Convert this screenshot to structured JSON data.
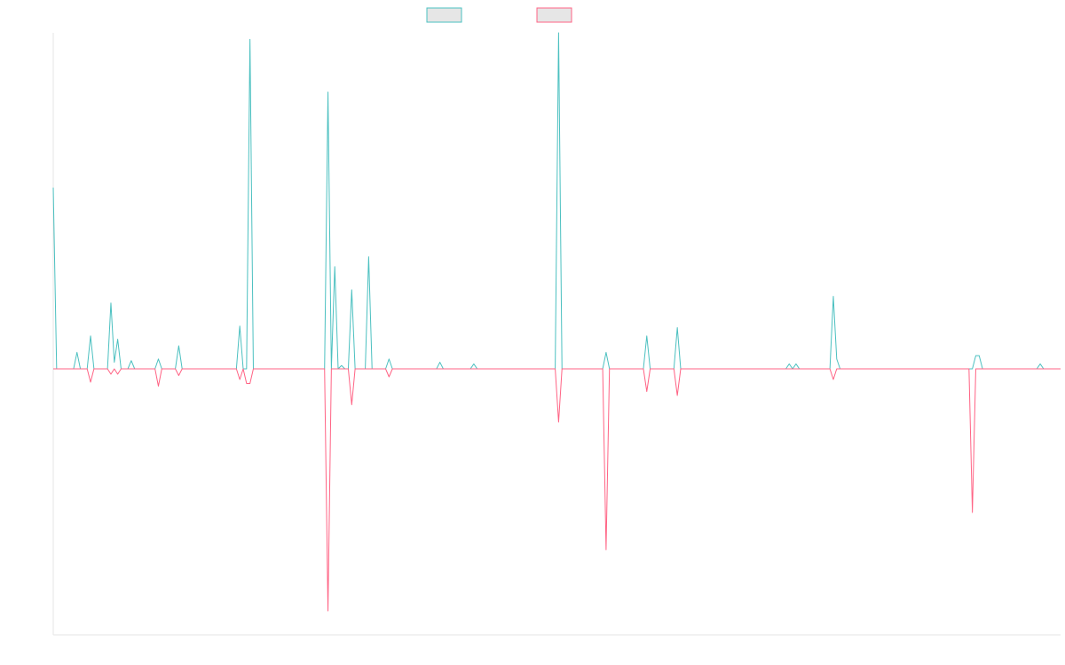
{
  "chart_data": {
    "type": "line",
    "title": "",
    "xlabel": "",
    "ylabel": "",
    "grid": false,
    "legend": "top-center",
    "ylim": [
      -1,
      1.02
    ],
    "x_count": 297,
    "series": [
      {
        "color": "#4bc0c0",
        "points": [
          [
            0,
            0.55
          ],
          [
            1,
            0
          ],
          [
            6,
            0
          ],
          [
            7,
            0.05
          ],
          [
            8,
            0
          ],
          [
            11,
            0.1
          ],
          [
            12,
            0
          ],
          [
            17,
            0.2
          ],
          [
            18,
            0.02
          ],
          [
            19,
            0.09
          ],
          [
            20,
            0
          ],
          [
            22,
            0
          ],
          [
            23,
            0.025
          ],
          [
            24,
            0
          ],
          [
            30,
            0
          ],
          [
            31,
            0.03
          ],
          [
            32,
            0
          ],
          [
            36,
            0
          ],
          [
            37,
            0.07
          ],
          [
            38,
            0
          ],
          [
            54,
            0
          ],
          [
            55,
            0.13
          ],
          [
            56,
            0
          ],
          [
            57,
            0
          ],
          [
            58,
            1
          ],
          [
            59,
            0
          ],
          [
            80,
            0
          ],
          [
            81,
            0.84
          ],
          [
            82,
            0
          ],
          [
            83,
            0.31
          ],
          [
            84,
            0
          ],
          [
            85,
            0.01
          ],
          [
            86,
            0
          ],
          [
            88,
            0.24
          ],
          [
            89,
            0
          ],
          [
            92,
            0
          ],
          [
            93,
            0.34
          ],
          [
            94,
            0
          ],
          [
            98,
            0
          ],
          [
            99,
            0.03
          ],
          [
            100,
            0
          ],
          [
            297,
            0
          ],
          [
            113,
            0
          ],
          [
            114,
            0.02
          ],
          [
            115,
            0
          ],
          [
            123,
            0
          ],
          [
            124,
            0.015
          ],
          [
            125,
            0
          ],
          [
            148,
            0
          ],
          [
            149,
            1.02
          ],
          [
            150,
            0
          ],
          [
            162,
            0
          ],
          [
            163,
            0.05
          ],
          [
            164,
            0
          ],
          [
            174,
            0
          ],
          [
            175,
            0.1
          ],
          [
            176,
            0
          ],
          [
            183,
            0
          ],
          [
            184,
            0.125
          ],
          [
            185,
            0
          ],
          [
            216,
            0
          ],
          [
            217,
            0.015
          ],
          [
            218,
            0
          ],
          [
            219,
            0.015
          ],
          [
            220,
            0
          ],
          [
            229,
            0
          ],
          [
            230,
            0.22
          ],
          [
            231,
            0.03
          ],
          [
            232,
            0
          ],
          [
            271,
            0
          ],
          [
            272,
            0.04
          ],
          [
            273,
            0.04
          ],
          [
            274,
            0
          ],
          [
            290,
            0
          ],
          [
            291,
            0.015
          ],
          [
            292,
            0
          ]
        ]
      },
      {
        "color": "#ff6384",
        "points": [
          [
            0,
            0
          ],
          [
            10,
            0
          ],
          [
            11,
            -0.05
          ],
          [
            12,
            0
          ],
          [
            16,
            0
          ],
          [
            17,
            -0.02
          ],
          [
            18,
            0
          ],
          [
            19,
            -0.02
          ],
          [
            20,
            0
          ],
          [
            30,
            0
          ],
          [
            31,
            -0.065
          ],
          [
            32,
            0
          ],
          [
            36,
            0
          ],
          [
            37,
            -0.025
          ],
          [
            38,
            0
          ],
          [
            54,
            0
          ],
          [
            55,
            -0.04
          ],
          [
            56,
            0
          ],
          [
            57,
            -0.055
          ],
          [
            58,
            -0.055
          ],
          [
            59,
            0
          ],
          [
            80,
            0
          ],
          [
            81,
            -0.91
          ],
          [
            82,
            0
          ],
          [
            87,
            0
          ],
          [
            88,
            -0.135
          ],
          [
            89,
            0
          ],
          [
            98,
            0
          ],
          [
            99,
            -0.03
          ],
          [
            100,
            0
          ],
          [
            148,
            0
          ],
          [
            149,
            -0.2
          ],
          [
            150,
            0
          ],
          [
            162,
            0
          ],
          [
            163,
            -0.68
          ],
          [
            164,
            0
          ],
          [
            174,
            0
          ],
          [
            175,
            -0.085
          ],
          [
            176,
            0
          ],
          [
            183,
            0
          ],
          [
            184,
            -0.1
          ],
          [
            185,
            0
          ],
          [
            229,
            0
          ],
          [
            230,
            -0.04
          ],
          [
            231,
            0
          ],
          [
            270,
            0
          ],
          [
            271,
            -0.54
          ],
          [
            272,
            0
          ],
          [
            297,
            0
          ]
        ]
      }
    ],
    "legend_entries": [
      "",
      ""
    ]
  },
  "colors": {
    "series_a": "#4bc0c0",
    "series_b": "#ff6384",
    "legend_fill": "#e6e6e6",
    "axis": "#e5e5e5"
  }
}
